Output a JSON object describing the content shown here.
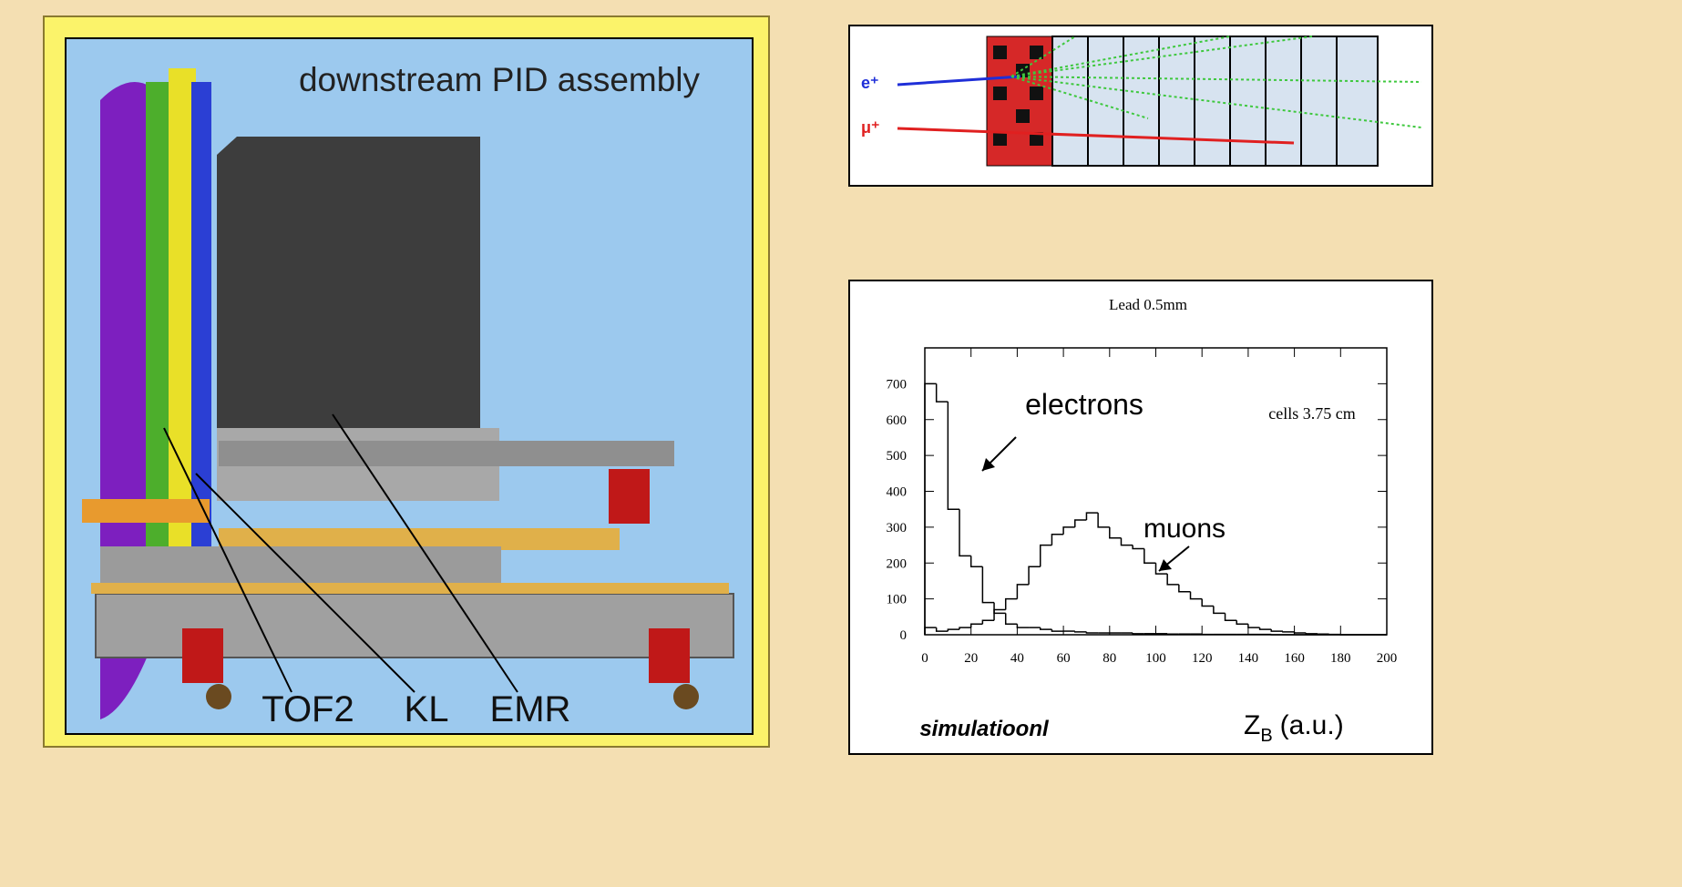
{
  "assembly": {
    "title": "downstream PID assembly",
    "labels": [
      "TOF2",
      "KL",
      "EMR"
    ]
  },
  "tracks": {
    "labels": [
      "e⁺",
      "μ⁺"
    ]
  },
  "chart_data": {
    "type": "histogram",
    "title": "Lead 0.5mm",
    "annotations": [
      "electrons",
      "muons",
      "cells 3.75 cm",
      "simulatioonl"
    ],
    "x_label": "Z",
    "x_label_sub": "B",
    "x_label_unit": "(a.u.)",
    "bins": [
      0,
      5,
      10,
      15,
      20,
      25,
      30,
      35,
      40,
      45,
      50,
      55,
      60,
      65,
      70,
      75,
      80,
      85,
      90,
      95,
      100,
      105,
      110,
      115,
      120,
      125,
      130,
      135,
      140,
      145,
      150,
      155,
      160,
      165,
      170,
      175,
      180,
      185,
      190,
      195,
      200
    ],
    "series": [
      {
        "name": "electrons",
        "color": "#000000",
        "values": [
          700,
          650,
          350,
          220,
          190,
          90,
          60,
          30,
          20,
          20,
          15,
          10,
          10,
          8,
          5,
          5,
          5,
          5,
          3,
          3,
          3,
          2,
          2,
          2,
          1,
          1,
          1,
          1,
          1,
          1,
          0,
          0,
          0,
          0,
          0,
          0,
          0,
          0,
          0,
          0
        ]
      },
      {
        "name": "muons",
        "color": "#000000",
        "values": [
          20,
          10,
          15,
          20,
          30,
          40,
          70,
          100,
          140,
          190,
          250,
          280,
          300,
          320,
          340,
          300,
          270,
          250,
          240,
          200,
          170,
          140,
          120,
          100,
          80,
          60,
          40,
          30,
          20,
          15,
          10,
          8,
          5,
          3,
          2,
          1,
          0,
          0,
          0,
          0
        ]
      }
    ],
    "xlim": [
      0,
      200
    ],
    "xticks": [
      0,
      20,
      40,
      60,
      80,
      100,
      120,
      140,
      160,
      180,
      200
    ],
    "ylim": [
      0,
      800
    ],
    "yticks": [
      0,
      100,
      200,
      300,
      400,
      500,
      600,
      700
    ]
  }
}
